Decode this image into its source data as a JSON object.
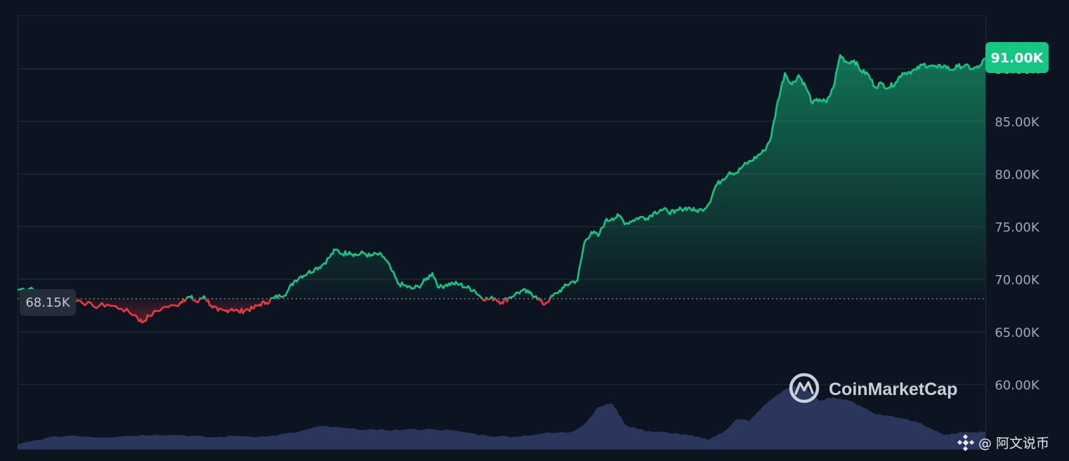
{
  "chart_data": {
    "type": "area",
    "title": "",
    "xlabel": "",
    "ylabel": "",
    "ylim": [
      55000,
      93000
    ],
    "y_ticks": [
      {
        "value": 60000,
        "label": "60.00K"
      },
      {
        "value": 65000,
        "label": "65.00K"
      },
      {
        "value": 70000,
        "label": "70.00K"
      },
      {
        "value": 75000,
        "label": "75.00K"
      },
      {
        "value": 80000,
        "label": "80.00K"
      },
      {
        "value": 85000,
        "label": "85.00K"
      },
      {
        "value": 90000,
        "label": "90.00K"
      }
    ],
    "baseline": {
      "value": 68150,
      "label": "68.15K"
    },
    "current": {
      "value": 91000,
      "label": "91.00K"
    },
    "grid": true,
    "colors": {
      "up": "#16c784",
      "down": "#ea3943",
      "background": "#0d1421",
      "grid": "#222a3a",
      "volume": "#2f3a63"
    },
    "price_series": [
      [
        0,
        69000
      ],
      [
        2,
        69200
      ],
      [
        3,
        68600
      ],
      [
        5,
        67900
      ],
      [
        7,
        67700
      ],
      [
        9,
        68000
      ],
      [
        11,
        67400
      ],
      [
        13,
        67600
      ],
      [
        15,
        67200
      ],
      [
        17,
        66600
      ],
      [
        18,
        65900
      ],
      [
        19,
        66500
      ],
      [
        21,
        67300
      ],
      [
        23,
        67500
      ],
      [
        24,
        68100
      ],
      [
        25,
        68300
      ],
      [
        26,
        67800
      ],
      [
        27,
        68400
      ],
      [
        28,
        67500
      ],
      [
        29,
        67000
      ],
      [
        30,
        67000
      ],
      [
        31,
        67200
      ],
      [
        32,
        66900
      ],
      [
        33,
        67100
      ],
      [
        34,
        67200
      ],
      [
        35,
        67600
      ],
      [
        36,
        67800
      ],
      [
        37,
        68200
      ],
      [
        38,
        68400
      ],
      [
        39,
        68800
      ],
      [
        40,
        69800
      ],
      [
        41,
        70300
      ],
      [
        42,
        70600
      ],
      [
        43,
        71000
      ],
      [
        44,
        71300
      ],
      [
        45,
        72000
      ],
      [
        46,
        72800
      ],
      [
        47,
        72400
      ],
      [
        48,
        72600
      ],
      [
        49,
        72300
      ],
      [
        50,
        72500
      ],
      [
        51,
        72200
      ],
      [
        52,
        72400
      ],
      [
        53,
        72100
      ],
      [
        54,
        71000
      ],
      [
        55,
        69600
      ],
      [
        56,
        69400
      ],
      [
        57,
        69100
      ],
      [
        58,
        69300
      ],
      [
        59,
        69900
      ],
      [
        60,
        70600
      ],
      [
        61,
        69200
      ],
      [
        62,
        69500
      ],
      [
        63,
        69600
      ],
      [
        64,
        69500
      ],
      [
        65,
        69200
      ],
      [
        66,
        69000
      ],
      [
        67,
        68300
      ],
      [
        68,
        68100
      ],
      [
        69,
        68200
      ],
      [
        70,
        67800
      ],
      [
        71,
        68200
      ],
      [
        72,
        68600
      ],
      [
        73,
        68900
      ],
      [
        74,
        68700
      ],
      [
        75,
        68400
      ],
      [
        76,
        67600
      ],
      [
        77,
        68100
      ],
      [
        78,
        68700
      ],
      [
        79,
        69200
      ],
      [
        80,
        69700
      ],
      [
        81,
        69900
      ],
      [
        82,
        73500
      ],
      [
        83,
        74500
      ],
      [
        84,
        74100
      ],
      [
        85,
        75500
      ],
      [
        86,
        75800
      ],
      [
        87,
        76000
      ],
      [
        88,
        75300
      ],
      [
        89,
        75600
      ],
      [
        90,
        75900
      ],
      [
        91,
        75800
      ],
      [
        92,
        76300
      ],
      [
        93,
        76600
      ],
      [
        94,
        76500
      ],
      [
        95,
        76300
      ],
      [
        96,
        76700
      ],
      [
        97,
        76800
      ],
      [
        98,
        76500
      ],
      [
        99,
        76600
      ],
      [
        100,
        77200
      ],
      [
        101,
        78900
      ],
      [
        102,
        79500
      ],
      [
        103,
        80200
      ],
      [
        104,
        80100
      ],
      [
        105,
        80800
      ],
      [
        106,
        81200
      ],
      [
        107,
        81700
      ],
      [
        108,
        82200
      ],
      [
        109,
        83500
      ],
      [
        110,
        87000
      ],
      [
        111,
        89600
      ],
      [
        112,
        88500
      ],
      [
        113,
        89400
      ],
      [
        114,
        88300
      ],
      [
        115,
        86700
      ],
      [
        116,
        87100
      ],
      [
        117,
        86800
      ],
      [
        118,
        88200
      ],
      [
        119,
        91300
      ],
      [
        120,
        90600
      ],
      [
        121,
        90800
      ],
      [
        122,
        89800
      ],
      [
        123,
        89500
      ],
      [
        124,
        88300
      ],
      [
        125,
        88600
      ],
      [
        126,
        88200
      ],
      [
        127,
        88700
      ],
      [
        128,
        89600
      ],
      [
        129,
        89700
      ],
      [
        130,
        89900
      ],
      [
        131,
        90400
      ],
      [
        132,
        90300
      ],
      [
        133,
        90100
      ],
      [
        134,
        90300
      ],
      [
        135,
        89900
      ],
      [
        136,
        90200
      ],
      [
        137,
        90300
      ],
      [
        138,
        90000
      ],
      [
        139,
        90100
      ],
      [
        140,
        91000
      ]
    ],
    "volume_series": [
      [
        0,
        1.2
      ],
      [
        4,
        3.0
      ],
      [
        8,
        3.8
      ],
      [
        12,
        3.2
      ],
      [
        16,
        3.6
      ],
      [
        20,
        4.0
      ],
      [
        24,
        3.8
      ],
      [
        28,
        3.2
      ],
      [
        32,
        3.6
      ],
      [
        36,
        3.4
      ],
      [
        40,
        4.5
      ],
      [
        44,
        6.3
      ],
      [
        48,
        5.6
      ],
      [
        52,
        5.2
      ],
      [
        56,
        5.3
      ],
      [
        60,
        5.5
      ],
      [
        64,
        4.8
      ],
      [
        68,
        3.6
      ],
      [
        72,
        3.4
      ],
      [
        76,
        4.3
      ],
      [
        80,
        4.6
      ],
      [
        82,
        6.8
      ],
      [
        84,
        11.5
      ],
      [
        86,
        12.6
      ],
      [
        88,
        6.5
      ],
      [
        90,
        5.4
      ],
      [
        92,
        4.7
      ],
      [
        95,
        4.3
      ],
      [
        98,
        3.4
      ],
      [
        100,
        2.7
      ],
      [
        102,
        4.5
      ],
      [
        104,
        8.1
      ],
      [
        106,
        7.9
      ],
      [
        108,
        12.0
      ],
      [
        110,
        15.0
      ],
      [
        112,
        17.3
      ],
      [
        114,
        16.8
      ],
      [
        116,
        13.1
      ],
      [
        118,
        14.2
      ],
      [
        120,
        13.5
      ],
      [
        122,
        11.8
      ],
      [
        124,
        9.7
      ],
      [
        126,
        9.1
      ],
      [
        128,
        8.5
      ],
      [
        130,
        7.6
      ],
      [
        132,
        5.7
      ],
      [
        134,
        3.8
      ],
      [
        136,
        4.4
      ],
      [
        138,
        4.6
      ],
      [
        140,
        4.8
      ]
    ]
  },
  "watermark": {
    "brand": "CoinMarketCap"
  },
  "footer": {
    "caption": "@ 阿文说币"
  }
}
